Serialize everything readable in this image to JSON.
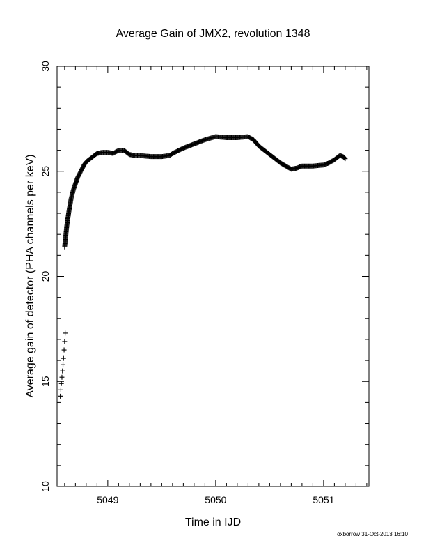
{
  "chart_data": {
    "type": "scatter",
    "title": "Average Gain of JMX2, revolution 1348",
    "xlabel": "Time in IJD",
    "ylabel": "Average gain of detector (PHA channels per keV)",
    "xlim": [
      5048.53,
      5051.42
    ],
    "ylim": [
      10,
      30
    ],
    "xticks": [
      5049,
      5050,
      5051
    ],
    "xtick_labels": [
      "5049",
      "5050",
      "5051"
    ],
    "yticks": [
      10,
      15,
      20,
      25,
      30
    ],
    "ytick_labels": [
      "10",
      "15",
      "20",
      "25",
      "30"
    ],
    "marker": "plus",
    "grid": false,
    "series": [
      {
        "x": [
          5048.56,
          5048.565,
          5048.57,
          5048.575,
          5048.58,
          5048.585,
          5048.59,
          5048.595,
          5048.6,
          5048.605
        ],
        "y": [
          14.3,
          14.6,
          14.9,
          15.2,
          15.5,
          15.8,
          16.1,
          16.5,
          16.9,
          17.3
        ]
      },
      {
        "x": [
          5048.6,
          5048.62,
          5048.64,
          5048.66,
          5048.68,
          5048.7,
          5048.72,
          5048.75,
          5048.78,
          5048.8,
          5048.85,
          5048.9,
          5048.95,
          5049.0,
          5049.05,
          5049.1,
          5049.15,
          5049.2,
          5049.25,
          5049.3,
          5049.4,
          5049.5,
          5049.57,
          5049.62,
          5049.7,
          5049.8,
          5049.9,
          5050.0,
          5050.1,
          5050.2,
          5050.3,
          5050.35,
          5050.4,
          5050.5,
          5050.6,
          5050.7,
          5050.75,
          5050.8,
          5050.9,
          5051.0,
          5051.05,
          5051.1,
          5051.15,
          5051.18,
          5051.2
        ],
        "y": [
          21.4,
          22.4,
          23.1,
          23.7,
          24.1,
          24.4,
          24.7,
          25.0,
          25.3,
          25.45,
          25.65,
          25.85,
          25.9,
          25.9,
          25.85,
          26.0,
          26.0,
          25.8,
          25.75,
          25.75,
          25.7,
          25.7,
          25.75,
          25.9,
          26.1,
          26.3,
          26.5,
          26.65,
          26.6,
          26.6,
          26.65,
          26.5,
          26.2,
          25.8,
          25.4,
          25.1,
          25.15,
          25.25,
          25.25,
          25.3,
          25.4,
          25.55,
          25.75,
          25.7,
          25.6
        ]
      }
    ]
  },
  "footer": {
    "stamp": "oxborrow 31-Oct-2013 16:10"
  }
}
